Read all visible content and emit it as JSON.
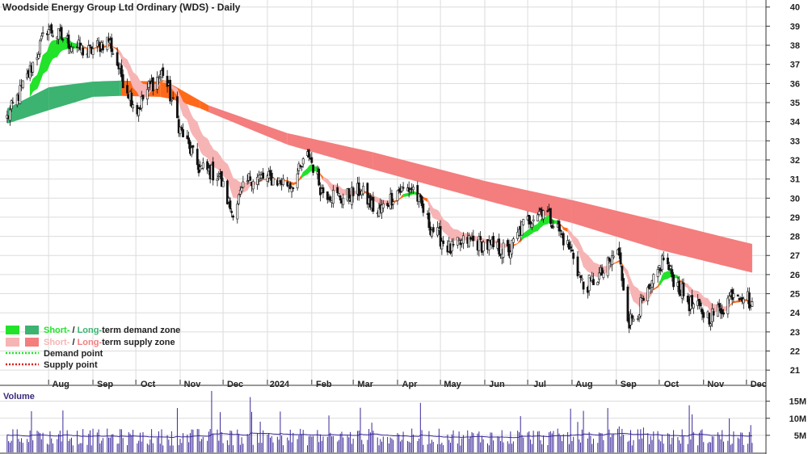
{
  "chart_data": {
    "type": "candlestick",
    "title": "Woodside Energy Group Ltd Ordinary (WDS) - Daily",
    "price_axis": {
      "ylim": [
        20.5,
        40.2
      ],
      "ticks": [
        21,
        22,
        23,
        24,
        25,
        26,
        27,
        28,
        29,
        30,
        31,
        32,
        33,
        34,
        35,
        36,
        37,
        38,
        39,
        40
      ]
    },
    "x_axis": {
      "ticks": [
        "Aug",
        "Sep",
        "Oct",
        "Nov",
        "Dec",
        "2024",
        "Feb",
        "Mar",
        "Apr",
        "May",
        "Jun",
        "Jul",
        "Aug",
        "Sep",
        "Oct",
        "Nov",
        "Dec"
      ]
    },
    "price_anchors": [
      {
        "d": "2023-07-03",
        "p": 34.2
      },
      {
        "d": "2023-07-17",
        "p": 36.3
      },
      {
        "d": "2023-07-31",
        "p": 38.9
      },
      {
        "d": "2023-08-14",
        "p": 38.2
      },
      {
        "d": "2023-08-28",
        "p": 37.6
      },
      {
        "d": "2023-09-12",
        "p": 38.3
      },
      {
        "d": "2023-09-22",
        "p": 36.2
      },
      {
        "d": "2023-10-02",
        "p": 34.6
      },
      {
        "d": "2023-10-10",
        "p": 35.8
      },
      {
        "d": "2023-10-20",
        "p": 36.6
      },
      {
        "d": "2023-11-01",
        "p": 33.6
      },
      {
        "d": "2023-11-14",
        "p": 31.6
      },
      {
        "d": "2023-11-28",
        "p": 31.2
      },
      {
        "d": "2023-12-07",
        "p": 29.3
      },
      {
        "d": "2023-12-20",
        "p": 31.1
      },
      {
        "d": "2024-01-05",
        "p": 31.0
      },
      {
        "d": "2024-01-18",
        "p": 30.7
      },
      {
        "d": "2024-01-30",
        "p": 32.3
      },
      {
        "d": "2024-02-08",
        "p": 30.4
      },
      {
        "d": "2024-02-22",
        "p": 30.0
      },
      {
        "d": "2024-03-06",
        "p": 30.4
      },
      {
        "d": "2024-03-18",
        "p": 29.2
      },
      {
        "d": "2024-04-01",
        "p": 30.4
      },
      {
        "d": "2024-04-12",
        "p": 30.5
      },
      {
        "d": "2024-04-24",
        "p": 28.5
      },
      {
        "d": "2024-05-08",
        "p": 27.3
      },
      {
        "d": "2024-05-20",
        "p": 27.8
      },
      {
        "d": "2024-06-03",
        "p": 27.5
      },
      {
        "d": "2024-06-18",
        "p": 27.2
      },
      {
        "d": "2024-06-28",
        "p": 28.6
      },
      {
        "d": "2024-07-05",
        "p": 29.1
      },
      {
        "d": "2024-07-12",
        "p": 29.5
      },
      {
        "d": "2024-07-22",
        "p": 28.4
      },
      {
        "d": "2024-08-02",
        "p": 27.0
      },
      {
        "d": "2024-08-09",
        "p": 25.3
      },
      {
        "d": "2024-08-23",
        "p": 26.1
      },
      {
        "d": "2024-09-02",
        "p": 27.3
      },
      {
        "d": "2024-09-10",
        "p": 23.5
      },
      {
        "d": "2024-09-24",
        "p": 25.0
      },
      {
        "d": "2024-10-04",
        "p": 26.9
      },
      {
        "d": "2024-10-10",
        "p": 25.9
      },
      {
        "d": "2024-10-22",
        "p": 24.5
      },
      {
        "d": "2024-11-05",
        "p": 23.8
      },
      {
        "d": "2024-11-15",
        "p": 24.3
      },
      {
        "d": "2024-11-22",
        "p": 25.2
      },
      {
        "d": "2024-12-02",
        "p": 24.8
      },
      {
        "d": "2024-12-05",
        "p": 24.2
      }
    ],
    "long_term_zone": [
      {
        "d": "2023-07-03",
        "lo": 33.9,
        "hi": 34.7,
        "kind": "demand"
      },
      {
        "d": "2023-08-01",
        "lo": 34.6,
        "hi": 35.8,
        "kind": "demand"
      },
      {
        "d": "2023-09-01",
        "lo": 35.3,
        "hi": 36.1,
        "kind": "demand"
      },
      {
        "d": "2023-09-20",
        "lo": 35.35,
        "hi": 36.15,
        "kind": "demand"
      },
      {
        "d": "2023-09-21",
        "lo": 35.35,
        "hi": 36.15,
        "kind": "short-supply"
      },
      {
        "d": "2023-10-18",
        "lo": 35.3,
        "hi": 36.1,
        "kind": "short-supply"
      },
      {
        "d": "2023-10-25",
        "lo": 35.2,
        "hi": 36.0,
        "kind": "short-supply"
      },
      {
        "d": "2023-11-15",
        "lo": 34.7,
        "hi": 35.1,
        "kind": "short-supply"
      },
      {
        "d": "2023-11-21",
        "lo": 34.5,
        "hi": 34.85,
        "kind": "supply"
      },
      {
        "d": "2024-01-15",
        "lo": 32.8,
        "hi": 33.4,
        "kind": "supply"
      },
      {
        "d": "2024-03-15",
        "lo": 31.5,
        "hi": 32.4,
        "kind": "supply"
      },
      {
        "d": "2024-06-01",
        "lo": 29.9,
        "hi": 30.9,
        "kind": "supply"
      },
      {
        "d": "2024-08-01",
        "lo": 28.7,
        "hi": 29.9,
        "kind": "supply"
      },
      {
        "d": "2024-10-01",
        "lo": 27.3,
        "hi": 28.8,
        "kind": "supply"
      },
      {
        "d": "2024-12-05",
        "lo": 26.1,
        "hi": 27.6,
        "kind": "supply"
      }
    ],
    "volume_axis": {
      "ticks": [
        "5M",
        "10M",
        "15M"
      ],
      "tick_values": [
        5,
        10,
        15
      ],
      "ylim": [
        0,
        18
      ]
    },
    "legend": [
      {
        "label_a": "Short-",
        "sep": " / ",
        "label_b": "Long-",
        "suffix": "term demand zone",
        "color_a": "#22e32a",
        "color_b": "#3cb371"
      },
      {
        "label_a": "Short-",
        "sep": " / ",
        "label_b": "Long-",
        "suffix": "term supply zone",
        "color_a": "#f7b4b4",
        "color_b": "#f47d7d"
      },
      {
        "label": "Demand point",
        "color": "#22e32a"
      },
      {
        "label": "Supply point",
        "color": "#e02020"
      }
    ],
    "volume_label": "Volume",
    "colors": {
      "short_demand": "#22e32a",
      "long_demand": "#3cb371",
      "short_supply": "#f7b4b4",
      "long_supply": "#f47d7d",
      "transition": "#ff6a1a",
      "candle": "#111111",
      "volume": "#3a2a9a"
    }
  }
}
